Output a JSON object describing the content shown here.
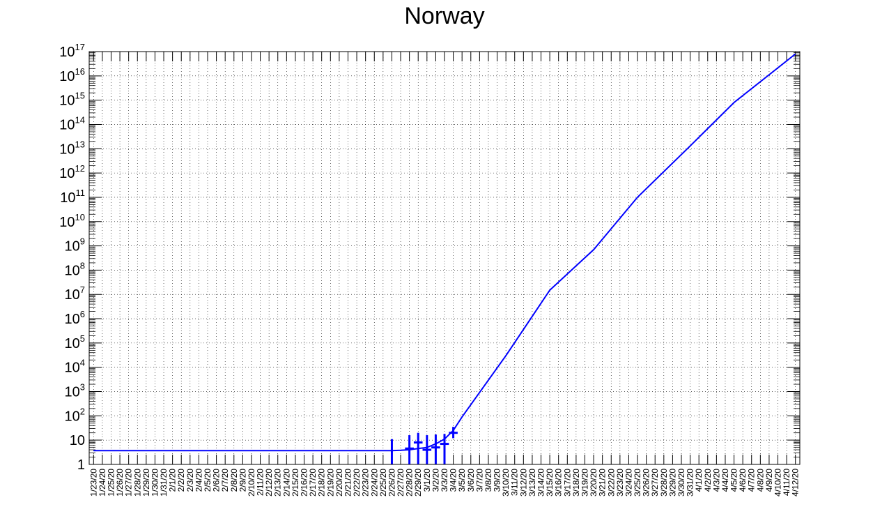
{
  "chart_data": {
    "type": "line",
    "title": "Norway",
    "xlabel": "",
    "ylabel": "",
    "y_scale": "log",
    "ylim": [
      1,
      1e+17
    ],
    "grid": true,
    "categories": [
      "1/23/20",
      "1/24/20",
      "1/25/20",
      "1/26/20",
      "1/27/20",
      "1/28/20",
      "1/29/20",
      "1/30/20",
      "1/31/20",
      "2/1/20",
      "2/2/20",
      "2/3/20",
      "2/4/20",
      "2/5/20",
      "2/6/20",
      "2/7/20",
      "2/8/20",
      "2/9/20",
      "2/10/20",
      "2/11/20",
      "2/12/20",
      "2/13/20",
      "2/14/20",
      "2/15/20",
      "2/16/20",
      "2/17/20",
      "2/18/20",
      "2/19/20",
      "2/20/20",
      "2/21/20",
      "2/22/20",
      "2/23/20",
      "2/24/20",
      "2/25/20",
      "2/26/20",
      "2/27/20",
      "2/28/20",
      "2/29/20",
      "3/1/20",
      "3/2/20",
      "3/3/20",
      "3/4/20",
      "3/5/20",
      "3/6/20",
      "3/7/20",
      "3/8/20",
      "3/9/20",
      "3/10/20",
      "3/11/20",
      "3/12/20",
      "3/13/20",
      "3/14/20",
      "3/15/20",
      "3/16/20",
      "3/17/20",
      "3/18/20",
      "3/19/20",
      "3/20/20",
      "3/21/20",
      "3/22/20",
      "3/23/20",
      "3/24/20",
      "3/25/20",
      "3/26/20",
      "3/27/20",
      "3/28/20",
      "3/29/20",
      "3/30/20",
      "3/31/20",
      "4/1/20",
      "4/2/20",
      "4/3/20",
      "4/4/20",
      "4/5/20",
      "4/6/20",
      "4/7/20",
      "4/8/20",
      "4/9/20",
      "4/10/20",
      "4/11/20",
      "4/12/20"
    ],
    "y_tick_labels": [
      {
        "value": 1,
        "base": "1",
        "exp": ""
      },
      {
        "value": 10,
        "base": "10",
        "exp": ""
      },
      {
        "value": 100,
        "base": "10",
        "exp": "2"
      },
      {
        "value": 1000,
        "base": "10",
        "exp": "3"
      },
      {
        "value": 10000,
        "base": "10",
        "exp": "4"
      },
      {
        "value": 100000,
        "base": "10",
        "exp": "5"
      },
      {
        "value": 1000000,
        "base": "10",
        "exp": "6"
      },
      {
        "value": 10000000,
        "base": "10",
        "exp": "7"
      },
      {
        "value": 100000000,
        "base": "10",
        "exp": "8"
      },
      {
        "value": 1000000000,
        "base": "10",
        "exp": "9"
      },
      {
        "value": 10000000000,
        "base": "10",
        "exp": "10"
      },
      {
        "value": 100000000000,
        "base": "10",
        "exp": "11"
      },
      {
        "value": 1000000000000,
        "base": "10",
        "exp": "12"
      },
      {
        "value": 10000000000000,
        "base": "10",
        "exp": "13"
      },
      {
        "value": 100000000000000,
        "base": "10",
        "exp": "14"
      },
      {
        "value": 1000000000000000,
        "base": "10",
        "exp": "15"
      },
      {
        "value": 10000000000000000,
        "base": "10",
        "exp": "16"
      },
      {
        "value": 100000000000000000,
        "base": "10",
        "exp": "17"
      }
    ],
    "series": [
      {
        "type": "fit-line",
        "color": "#0000ff",
        "points": [
          {
            "x": "1/23/20",
            "y": 3.7
          },
          {
            "x": "2/25/20",
            "y": 3.7
          },
          {
            "x": "2/26/20",
            "y": 3.7
          },
          {
            "x": "2/27/20",
            "y": 3.8
          },
          {
            "x": "2/28/20",
            "y": 4
          },
          {
            "x": "2/29/20",
            "y": 4.5
          },
          {
            "x": "3/1/20",
            "y": 5
          },
          {
            "x": "3/2/20",
            "y": 7
          },
          {
            "x": "3/3/20",
            "y": 11
          },
          {
            "x": "3/4/20",
            "y": 25
          },
          {
            "x": "3/5/20",
            "y": 90
          },
          {
            "x": "3/10/20",
            "y": 30000
          },
          {
            "x": "3/15/20",
            "y": 15000000
          },
          {
            "x": "3/20/20",
            "y": 700000000
          },
          {
            "x": "3/25/20",
            "y": 100000000000
          },
          {
            "x": "3/31/20",
            "y": 13000000000000
          },
          {
            "x": "4/5/20",
            "y": 800000000000000
          },
          {
            "x": "4/12/20",
            "y": 80000000000000000
          }
        ]
      },
      {
        "type": "data-points-with-errors",
        "color": "#0000ff",
        "points": [
          {
            "x": "2/26/20",
            "y": 1,
            "err_high": 11
          },
          {
            "x": "2/28/20",
            "y": 4.5,
            "err_low": 1,
            "err_high": 16
          },
          {
            "x": "2/29/20",
            "y": 8,
            "err_low": 1,
            "err_high": 20
          },
          {
            "x": "3/1/20",
            "y": 4,
            "err_low": 1,
            "err_high": 16
          },
          {
            "x": "3/2/20",
            "y": 5,
            "err_low": 1,
            "err_high": 17
          },
          {
            "x": "3/3/20",
            "y": 7,
            "err_low": 1,
            "err_high": 18
          },
          {
            "x": "3/4/20",
            "y": 20,
            "err_low": 12,
            "err_high": 35
          }
        ]
      }
    ]
  }
}
